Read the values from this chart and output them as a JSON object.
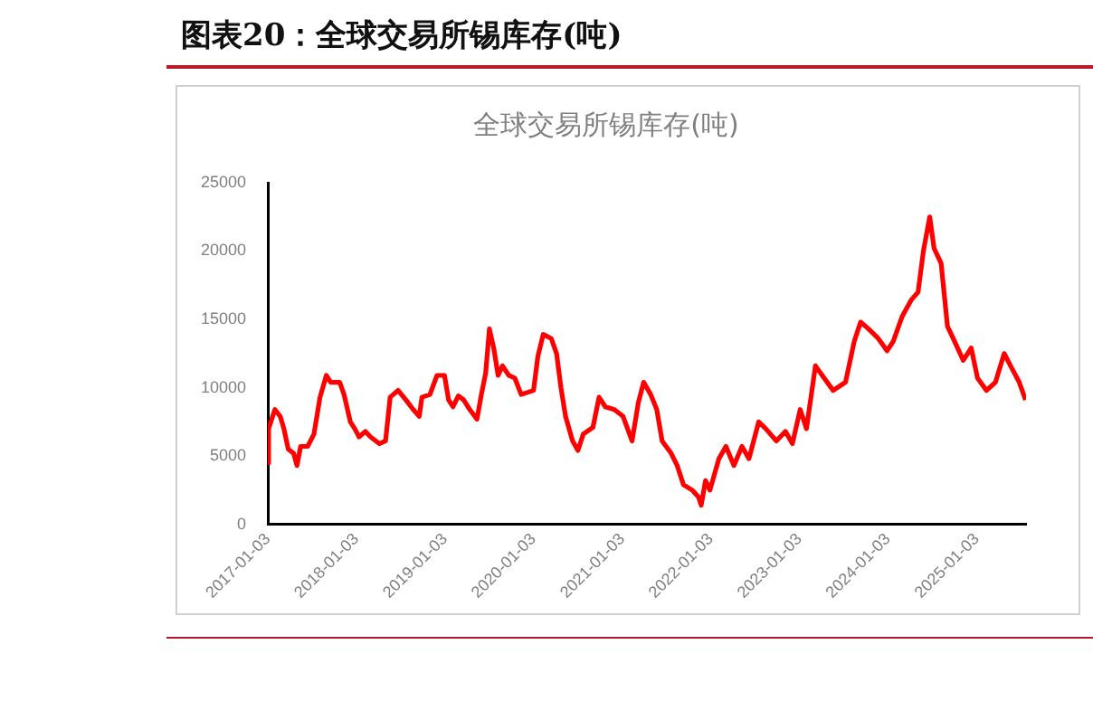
{
  "chart_data": {
    "type": "line",
    "title": "图表20：全球交易所锡库存(吨)",
    "subtitle": "全球交易所锡库存(吨)",
    "x": [
      "2017-01-03",
      "2017-01-06",
      "2017-02-01",
      "2017-02-23",
      "2017-03-10",
      "2017-03-28",
      "2017-04-19",
      "2017-05-03",
      "2017-05-18",
      "2017-06-16",
      "2017-07-12",
      "2017-08-06",
      "2017-09-01",
      "2017-09-19",
      "2017-10-26",
      "2017-11-13",
      "2017-12-09",
      "2017-12-27",
      "2018-01-14",
      "2018-02-09",
      "2018-03-02",
      "2018-04-08",
      "2018-05-03",
      "2018-05-22",
      "2018-06-24",
      "2018-07-26",
      "2018-08-25",
      "2018-09-19",
      "2018-09-30",
      "2018-11-02",
      "2018-12-01",
      "2019-01-01",
      "2019-01-18",
      "2019-02-05",
      "2019-02-27",
      "2019-03-21",
      "2019-04-15",
      "2019-05-15",
      "2019-06-02",
      "2019-06-20",
      "2019-07-05",
      "2019-07-23",
      "2019-08-10",
      "2019-08-28",
      "2019-09-23",
      "2019-10-18",
      "2019-11-13",
      "2020-01-03",
      "2020-01-21",
      "2020-02-12",
      "2020-03-16",
      "2020-04-07",
      "2020-04-25",
      "2020-05-14",
      "2020-06-12",
      "2020-07-04",
      "2020-07-26",
      "2020-09-04",
      "2020-09-29",
      "2020-10-25",
      "2020-12-01",
      "2021-01-06",
      "2021-02-12",
      "2021-03-10",
      "2021-04-01",
      "2021-04-30",
      "2021-05-25",
      "2021-06-16",
      "2021-07-23",
      "2021-08-17",
      "2021-09-12",
      "2021-10-18",
      "2021-11-13",
      "2021-11-24",
      "2021-12-12",
      "2021-12-30",
      "2022-02-05",
      "2022-03-06",
      "2022-04-08",
      "2022-05-11",
      "2022-06-09",
      "2022-07-19",
      "2022-08-17",
      "2022-09-30",
      "2022-11-06",
      "2022-12-05",
      "2023-01-06",
      "2023-02-01",
      "2023-03-10",
      "2023-04-15",
      "2023-05-22",
      "2023-07-12",
      "2023-08-17",
      "2023-09-12",
      "2023-10-15",
      "2023-11-24",
      "2023-12-30",
      "2024-01-25",
      "2024-03-01",
      "2024-04-07",
      "2024-05-06",
      "2024-05-28",
      "2024-06-23",
      "2024-07-11",
      "2024-08-09",
      "2024-09-04",
      "2024-10-03",
      "2024-11-08",
      "2024-12-11",
      "2025-01-06",
      "2025-02-12",
      "2025-03-21",
      "2025-04-26",
      "2025-05-22",
      "2025-06-27",
      "2025-07-23"
    ],
    "series": [
      {
        "color": "#ff0000",
        "values": [
          4500,
          7000,
          8400,
          7900,
          7000,
          5500,
          5200,
          4300,
          5700,
          5700,
          6600,
          9300,
          10900,
          10400,
          10400,
          9500,
          7500,
          7000,
          6400,
          6800,
          6400,
          5900,
          6100,
          9300,
          9800,
          9100,
          8400,
          7900,
          9300,
          9500,
          10900,
          10900,
          9100,
          8600,
          9400,
          9100,
          8400,
          7700,
          9500,
          11100,
          14300,
          12900,
          10900,
          11600,
          10900,
          10700,
          9500,
          9800,
          12300,
          13900,
          13600,
          12500,
          10000,
          7900,
          6100,
          5400,
          6600,
          7100,
          9300,
          8600,
          8400,
          7900,
          6100,
          8900,
          10400,
          9500,
          8400,
          6100,
          5200,
          4300,
          2900,
          2500,
          2000,
          1400,
          3200,
          2500,
          4800,
          5700,
          4300,
          5700,
          4800,
          7500,
          7000,
          6100,
          6800,
          5900,
          8400,
          7000,
          11600,
          10700,
          9800,
          10400,
          13400,
          14800,
          14300,
          13600,
          12700,
          13400,
          15200,
          16400,
          17000,
          20000,
          22500,
          20200,
          19100,
          14500,
          13400,
          12000,
          12900,
          10700,
          9800,
          10400,
          12500,
          11600,
          10400,
          9100
        ]
      }
    ],
    "xlim": [
      "2017-01-03",
      "2025-07-25"
    ],
    "xticks": [
      "2017-01-03",
      "2018-01-03",
      "2019-01-03",
      "2020-01-03",
      "2021-01-03",
      "2022-01-03",
      "2023-01-03",
      "2024-01-03",
      "2025-01-03"
    ],
    "ylim": [
      0,
      25000
    ],
    "yticks": [
      0,
      5000,
      10000,
      15000,
      20000,
      25000
    ],
    "grid": false,
    "legend": false,
    "marker": "none",
    "line_style": "solid"
  }
}
